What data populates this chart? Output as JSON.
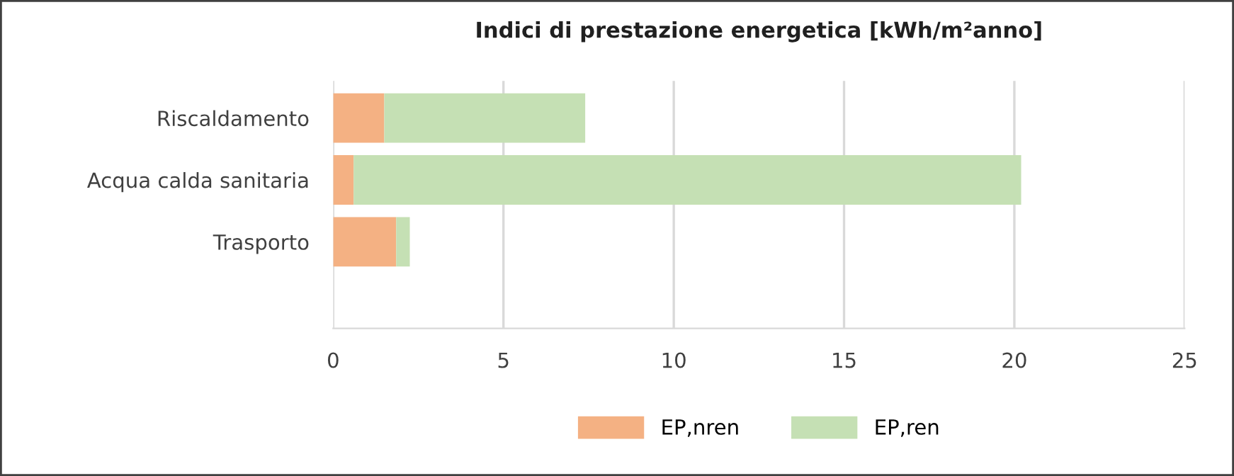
{
  "chart_data": {
    "type": "bar",
    "orientation": "horizontal",
    "stacked": true,
    "title": "Indici di prestazione energetica [kWh/m²anno]",
    "categories": [
      "Riscaldamento",
      "Acqua calda sanitaria",
      "Trasporto"
    ],
    "series": [
      {
        "name": "EP,nren",
        "color": "#f4b183",
        "values": [
          1.5,
          0.6,
          1.85
        ]
      },
      {
        "name": "EP,ren",
        "color": "#c5e0b4",
        "values": [
          5.9,
          19.6,
          0.4
        ]
      }
    ],
    "xlim": [
      0,
      25
    ],
    "xticks": [
      0,
      5,
      10,
      15,
      20,
      25
    ],
    "grid": "x",
    "legend": "bottom"
  }
}
